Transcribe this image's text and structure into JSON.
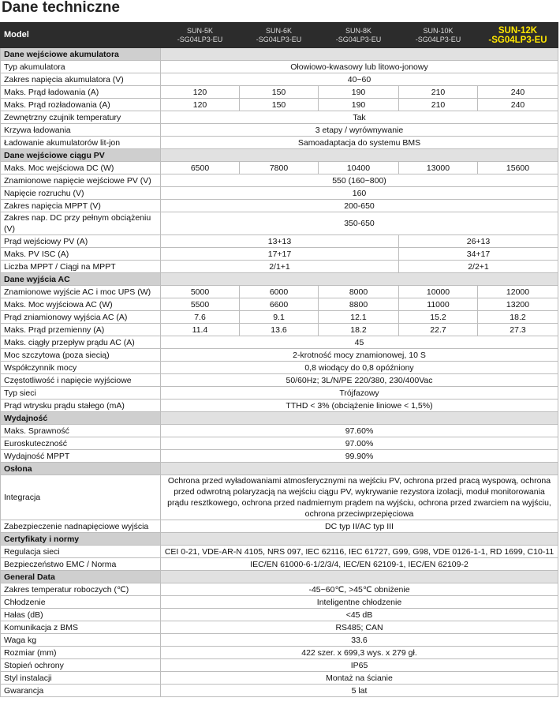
{
  "title": "Dane techniczne",
  "header": {
    "label": "Model",
    "models": [
      "SUN-5K\n-SG04LP3-EU",
      "SUN-6K\n-SG04LP3-EU",
      "SUN-8K\n-SG04LP3-EU",
      "SUN-10K\n-SG04LP3-EU",
      "SUN-12K\n-SG04LP3-EU"
    ]
  },
  "sections": [
    {
      "title": "Dane wejściowe akumulatora",
      "rows": [
        {
          "label": "Typ akumulatora",
          "values": [
            "Ołowiowo-kwasowy lub litowo-jonowy"
          ]
        },
        {
          "label": "Zakres napięcia akumulatora (V)",
          "values": [
            "40~60"
          ]
        },
        {
          "label": "Maks. Prąd ładowania (A)",
          "values": [
            "120",
            "150",
            "190",
            "210",
            "240"
          ]
        },
        {
          "label": "Maks. Prąd rozładowania (A)",
          "values": [
            "120",
            "150",
            "190",
            "210",
            "240"
          ]
        },
        {
          "label": "Zewnętrzny czujnik temperatury",
          "values": [
            "Tak"
          ]
        },
        {
          "label": "Krzywa ładowania",
          "values": [
            "3 etapy / wyrównywanie"
          ]
        },
        {
          "label": "Ładowanie akumulatorów lit-jon",
          "values": [
            "Samoadaptacja do systemu BMS"
          ]
        }
      ]
    },
    {
      "title": "Dane wejściowe ciągu PV",
      "rows": [
        {
          "label": "Maks. Moc wejściowa DC (W)",
          "values": [
            "6500",
            "7800",
            "10400",
            "13000",
            "15600"
          ]
        },
        {
          "label": "Znamionowe napięcie wejściowe PV (V)",
          "values": [
            "550 (160~800)"
          ]
        },
        {
          "label": "Napięcie rozruchu (V)",
          "values": [
            "160"
          ]
        },
        {
          "label": "Zakres napięcia MPPT (V)",
          "values": [
            "200-650"
          ]
        },
        {
          "label": "Zakres nap. DC przy pełnym obciążeniu (V)",
          "values": [
            "350-650"
          ]
        },
        {
          "label": "Prąd wejściowy PV (A)",
          "values": [
            "13+13",
            "26+13"
          ]
        },
        {
          "label": "Maks. PV ISC (A)",
          "values": [
            "17+17",
            "34+17"
          ]
        },
        {
          "label": "Liczba MPPT / Ciągi na MPPT",
          "values": [
            "2/1+1",
            "2/2+1"
          ]
        }
      ]
    },
    {
      "title": "Dane wyjścia AC",
      "rows": [
        {
          "label": "Znamionowe wyjście AC i moc UPS (W)",
          "values": [
            "5000",
            "6000",
            "8000",
            "10000",
            "12000"
          ]
        },
        {
          "label": "Maks. Moc wyjściowa AC (W)",
          "values": [
            "5500",
            "6600",
            "8800",
            "11000",
            "13200"
          ]
        },
        {
          "label": "Prąd zniamionowy wyjścia AC (A)",
          "values": [
            "7.6",
            "9.1",
            "12.1",
            "15.2",
            "18.2"
          ]
        },
        {
          "label": "Maks. Prąd przemienny (A)",
          "values": [
            "11.4",
            "13.6",
            "18.2",
            "22.7",
            "27.3"
          ]
        },
        {
          "label": "Maks. ciągły przepływ prądu AC (A)",
          "values": [
            "45"
          ]
        },
        {
          "label": "Moc szczytowa (poza siecią)",
          "values": [
            "2-krotność mocy znamionowej, 10 S"
          ]
        },
        {
          "label": "Współczynnik mocy",
          "values": [
            "0,8 wiodący do 0,8 opóźniony"
          ]
        },
        {
          "label": "Częstotliwość i napięcie wyjściowe",
          "values": [
            "50/60Hz; 3L/N/PE 220/380, 230/400Vac"
          ]
        },
        {
          "label": "Typ sieci",
          "values": [
            "Trójfazowy"
          ]
        },
        {
          "label": "Prąd wtrysku prądu stałego (mA)",
          "values": [
            "TTHD < 3% (obciążenie liniowe < 1,5%)"
          ]
        }
      ]
    },
    {
      "title": "Wydajność",
      "rows": [
        {
          "label": "Maks. Sprawność",
          "values": [
            "97.60%"
          ]
        },
        {
          "label": "Euroskuteczność",
          "values": [
            "97.00%"
          ]
        },
        {
          "label": "Wydajność MPPT",
          "values": [
            "99.90%"
          ]
        }
      ]
    },
    {
      "title": "Osłona",
      "rows": [
        {
          "label": "Integracja",
          "values": [
            "Ochrona przed wyładowaniami atmosferycznymi na wejściu PV, ochrona przed pracą wyspową, ochrona przed odwrotną polaryzacją na wejściu ciągu PV, wykrywanie rezystora izolacji, moduł monitorowania prądu resztkowego, ochrona przed nadmiernym prądem na wyjściu, ochrona przed zwarciem na wyjściu, ochrona przeciwprzepięciowa"
          ]
        },
        {
          "label": "Zabezpieczenie nadnapięciowe wyjścia",
          "values": [
            "DC typ II/AC typ III"
          ]
        }
      ]
    },
    {
      "title": "Certyfikaty i normy",
      "rows": [
        {
          "label": "Regulacja sieci",
          "values": [
            "CEI 0-21, VDE-AR-N 4105, NRS 097, IEC 62116, IEC 61727, G99, G98, VDE 0126-1-1, RD 1699, C10-11"
          ]
        },
        {
          "label": "Bezpieczeństwo EMC / Norma",
          "values": [
            "IEC/EN 61000-6-1/2/3/4, IEC/EN 62109-1, IEC/EN 62109-2"
          ]
        }
      ]
    },
    {
      "title": "General Data",
      "rows": [
        {
          "label": "Zakres temperatur roboczych (℃)",
          "values": [
            "-45~60℃, >45℃ obniżenie"
          ]
        },
        {
          "label": "Chłodzenie",
          "values": [
            "Inteligentne chłodzenie"
          ]
        },
        {
          "label": "Hałas (dB)",
          "values": [
            "<45 dB"
          ]
        },
        {
          "label": "Komunikacja z BMS",
          "values": [
            "RS485; CAN"
          ]
        },
        {
          "label": "Waga kg",
          "values": [
            "33.6"
          ]
        },
        {
          "label": "Rozmiar (mm)",
          "values": [
            "422 szer. x 699,3 wys. x 279 gł."
          ]
        },
        {
          "label": "Stopień ochrony",
          "values": [
            "IP65"
          ]
        },
        {
          "label": "Styl instalacji",
          "values": [
            "Montaż na ścianie"
          ]
        },
        {
          "label": "Gwarancja",
          "values": [
            "5 lat"
          ]
        }
      ]
    }
  ]
}
